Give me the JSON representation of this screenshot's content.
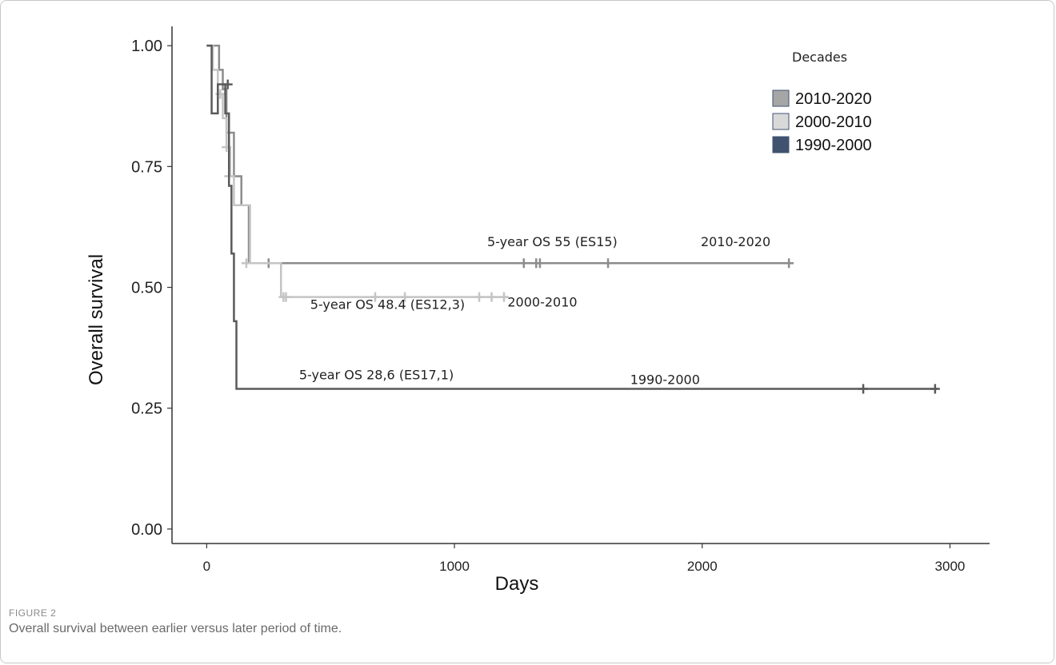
{
  "figure": {
    "label": "FIGURE 2",
    "caption": "Overall survival between earlier versus later period of time."
  },
  "chart_data": {
    "type": "line",
    "subtype": "kaplan-meier",
    "xlabel": "Days",
    "ylabel": "Overall survival",
    "xlim": [
      -140,
      3160
    ],
    "ylim": [
      -0.03,
      1.04
    ],
    "x_ticks": [
      0,
      1000,
      2000,
      3000
    ],
    "x_tick_labels": [
      "0",
      "1000",
      "2000",
      "3000"
    ],
    "y_ticks": [
      0,
      0.25,
      0.5,
      0.75,
      1
    ],
    "y_tick_labels": [
      "0.00",
      "0.25",
      "0.50",
      "0.75",
      "1.00"
    ],
    "grid": false,
    "legend": {
      "title": "Decades",
      "placement": "top-right",
      "entries": [
        {
          "label": "2010-2020",
          "color": "#a6a6a6"
        },
        {
          "label": "2000-2010",
          "color": "#d9d9d9"
        },
        {
          "label": "1990-2000",
          "color": "#3f5370"
        }
      ]
    },
    "series": [
      {
        "name": "2010-2020",
        "color": "#8c8c8c",
        "steps": [
          [
            0,
            1.0
          ],
          [
            50,
            0.95
          ],
          [
            65,
            0.91
          ],
          [
            80,
            0.82
          ],
          [
            110,
            0.73
          ],
          [
            140,
            0.67
          ],
          [
            170,
            0.55
          ],
          [
            2350,
            0.55
          ]
        ],
        "censored": [
          [
            250,
            0.55
          ],
          [
            1280,
            0.55
          ],
          [
            1330,
            0.55
          ],
          [
            1345,
            0.55
          ],
          [
            1620,
            0.55
          ],
          [
            2350,
            0.55
          ]
        ]
      },
      {
        "name": "2000-2010",
        "color": "#c4c4c4",
        "steps": [
          [
            0,
            1.0
          ],
          [
            25,
            0.95
          ],
          [
            45,
            0.9
          ],
          [
            65,
            0.85
          ],
          [
            80,
            0.79
          ],
          [
            95,
            0.73
          ],
          [
            110,
            0.67
          ],
          [
            175,
            0.55
          ],
          [
            300,
            0.48
          ],
          [
            1215,
            0.48
          ]
        ],
        "censored": [
          [
            55,
            0.9
          ],
          [
            80,
            0.79
          ],
          [
            90,
            0.73
          ],
          [
            160,
            0.55
          ],
          [
            310,
            0.48
          ],
          [
            320,
            0.48
          ],
          [
            680,
            0.48
          ],
          [
            800,
            0.48
          ],
          [
            1100,
            0.48
          ],
          [
            1150,
            0.48
          ],
          [
            1200,
            0.48
          ]
        ]
      },
      {
        "name": "1990-2000",
        "color": "#5a5a5a",
        "steps": [
          [
            0,
            1.0
          ],
          [
            20,
            0.86
          ],
          [
            45,
            0.92
          ],
          [
            75,
            0.86
          ],
          [
            90,
            0.71
          ],
          [
            100,
            0.57
          ],
          [
            110,
            0.43
          ],
          [
            120,
            0.29
          ],
          [
            2950,
            0.29
          ]
        ],
        "censored": [
          [
            85,
            0.92
          ],
          [
            2650,
            0.29
          ],
          [
            2940,
            0.29
          ]
        ]
      }
    ],
    "annotations": [
      {
        "text": "5-year OS 55 (ES15)",
        "x": 1395,
        "y": 0.585
      },
      {
        "text": "2010-2020",
        "x": 2135,
        "y": 0.585
      },
      {
        "text": "5-year OS 48.4 (ES12,3)",
        "x": 730,
        "y": 0.455
      },
      {
        "text": "2000-2010",
        "x": 1355,
        "y": 0.46
      },
      {
        "text": "5-year OS 28,6 (ES17,1)",
        "x": 685,
        "y": 0.31
      },
      {
        "text": "1990-2000",
        "x": 1850,
        "y": 0.3
      }
    ]
  }
}
